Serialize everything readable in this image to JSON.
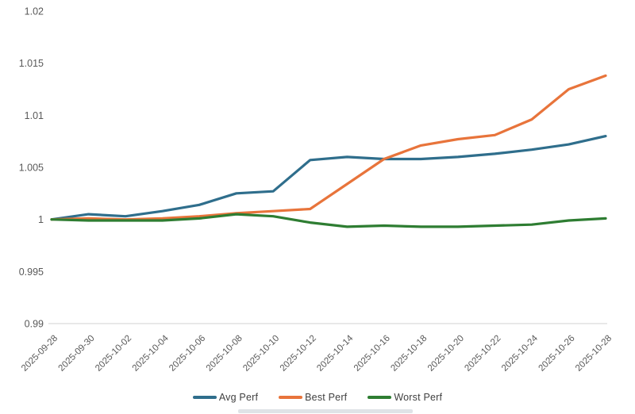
{
  "chart_data": {
    "type": "line",
    "title": "",
    "xlabel": "",
    "ylabel": "",
    "grid": false,
    "legend_position": "bottom",
    "ylim": [
      0.99,
      1.02
    ],
    "categories": [
      "2025-09-28",
      "2025-09-30",
      "2025-10-02",
      "2025-10-04",
      "2025-10-06",
      "2025-10-08",
      "2025-10-10",
      "2025-10-12",
      "2025-10-14",
      "2025-10-16",
      "2025-10-18",
      "2025-10-20",
      "2025-10-22",
      "2025-10-24",
      "2025-10-26",
      "2025-10-28"
    ],
    "y_ticks": [
      {
        "value": 1.02,
        "label": "1.02"
      },
      {
        "value": 1.015,
        "label": "1.015"
      },
      {
        "value": 1.01,
        "label": "1.01"
      },
      {
        "value": 1.005,
        "label": "1.005"
      },
      {
        "value": 1.0,
        "label": "1"
      },
      {
        "value": 0.995,
        "label": "0.995"
      },
      {
        "value": 0.99,
        "label": "0.99"
      }
    ],
    "series": [
      {
        "name": "Avg Perf",
        "color": "#2f6e8c",
        "values": [
          1.0,
          1.0005,
          1.0003,
          1.0008,
          1.0014,
          1.0025,
          1.0027,
          1.0057,
          1.006,
          1.0058,
          1.0058,
          1.006,
          1.0063,
          1.0067,
          1.0072,
          1.008
        ]
      },
      {
        "name": "Best Perf",
        "color": "#e8743b",
        "values": [
          1.0,
          1.0001,
          1.0,
          1.0001,
          1.0003,
          1.0006,
          1.0008,
          1.001,
          1.0034,
          1.0058,
          1.0071,
          1.0077,
          1.0081,
          1.0096,
          1.0125,
          1.0138
        ]
      },
      {
        "name": "Worst Perf",
        "color": "#2e7d32",
        "values": [
          1.0,
          0.9999,
          0.9999,
          0.9999,
          1.0001,
          1.0005,
          1.0003,
          0.9997,
          0.9993,
          0.9994,
          0.9993,
          0.9993,
          0.9994,
          0.9995,
          0.9999,
          1.0001
        ]
      }
    ]
  },
  "colors": {
    "axis_text": "#595959",
    "axis_line": "#d9d9d9",
    "legend_text": "#404040",
    "background": "#ffffff"
  }
}
